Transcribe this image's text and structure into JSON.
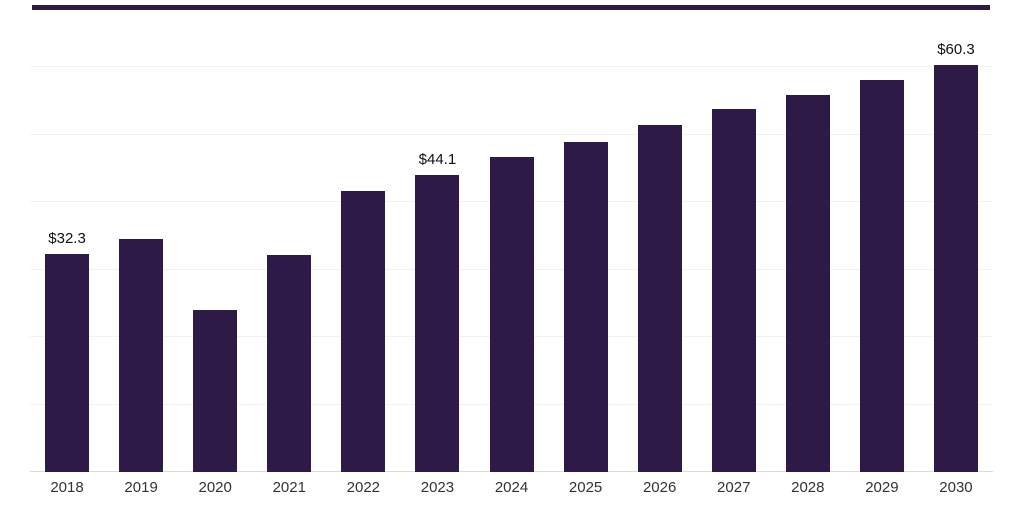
{
  "chart_data": {
    "type": "bar",
    "title": "",
    "xlabel": "",
    "ylabel": "",
    "categories": [
      "2018",
      "2019",
      "2020",
      "2021",
      "2022",
      "2023",
      "2024",
      "2025",
      "2026",
      "2027",
      "2028",
      "2029",
      "2030"
    ],
    "values": [
      32.3,
      34.5,
      24.0,
      32.2,
      41.7,
      44.1,
      46.7,
      48.9,
      51.4,
      53.8,
      55.9,
      58.2,
      60.3
    ],
    "point_labels": [
      "$32.3",
      "",
      "",
      "",
      "",
      "$44.1",
      "",
      "",
      "",
      "",
      "",
      "",
      "$60.3"
    ],
    "ylim": [
      0,
      70
    ],
    "gridline_values": [
      10,
      20,
      30,
      40,
      50,
      60
    ],
    "legend": "none",
    "grid": "horizontal",
    "colors": {
      "bar": "#2e1a47",
      "grid": "#f2f2f2",
      "axis": "#dcdcdc",
      "value_label": "#111111",
      "tick_label": "#333333"
    }
  }
}
